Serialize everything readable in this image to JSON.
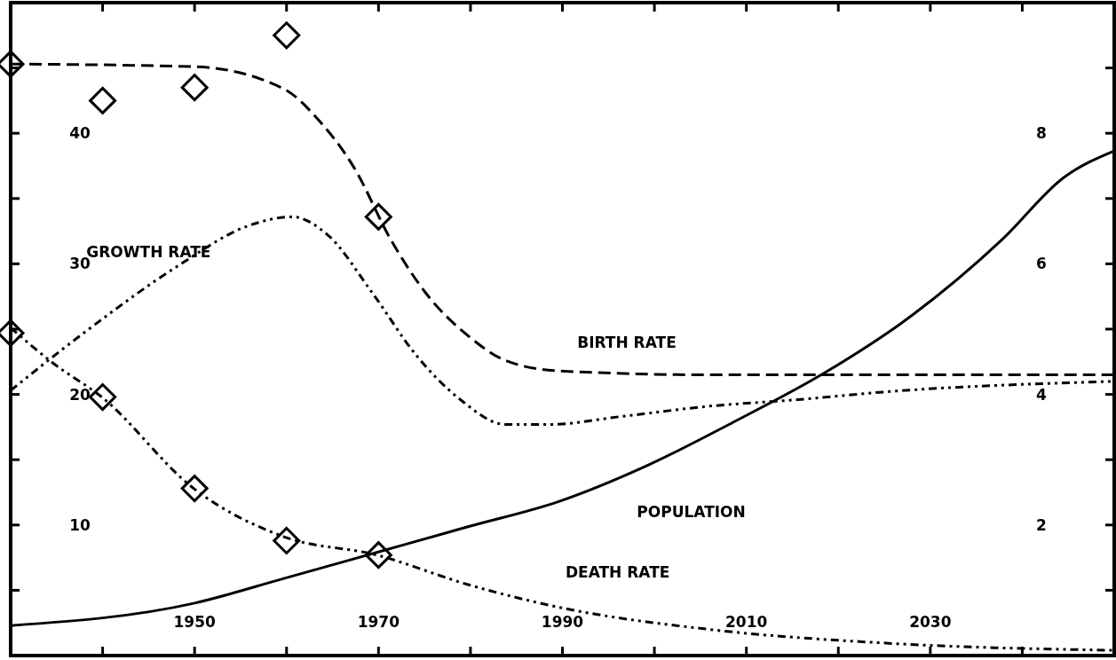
{
  "chart_data": {
    "type": "line",
    "xlim": [
      1930,
      2050
    ],
    "ylim": [
      0,
      50
    ],
    "y2lim": [
      0,
      10
    ],
    "xticks": [
      {
        "value": 1940,
        "label": null
      },
      1950,
      {
        "value": 1960,
        "label": null
      },
      1970,
      {
        "value": 1980,
        "label": null
      },
      1990,
      {
        "value": 2000,
        "label": null
      },
      2010,
      {
        "value": 2020,
        "label": null
      },
      2030,
      {
        "value": 2040,
        "label": null
      }
    ],
    "yticks": [
      {
        "value": 5,
        "label": null
      },
      10,
      {
        "value": 15,
        "label": null
      },
      20,
      {
        "value": 25,
        "label": null
      },
      30,
      {
        "value": 35,
        "label": null
      },
      40,
      {
        "value": 45,
        "label": null
      }
    ],
    "y2ticks": [
      {
        "value": 1,
        "label": null
      },
      2,
      {
        "value": 3,
        "label": null
      },
      4,
      {
        "value": 5,
        "label": null
      },
      6,
      {
        "value": 7,
        "label": null
      },
      8,
      {
        "value": 9,
        "label": null
      }
    ],
    "grid": false,
    "series": [
      {
        "name": "BIRTH RATE",
        "color": "#000000",
        "line_style": "dashed",
        "x": [
          1930,
          1950,
          1959.7,
          1963.5,
          1967.4,
          1971.3,
          1975.1,
          1979.9,
          1983.8,
          1989.6,
          2006,
          2025,
          2050
        ],
        "values": [
          45.3,
          45.1,
          43.4,
          41,
          37.3,
          31.9,
          27.8,
          24.4,
          22.6,
          21.8,
          21.5,
          21.5,
          21.5
        ]
      },
      {
        "name": "GROWTH RATE",
        "color": "#000000",
        "line_style": "dotted",
        "x": [
          1930,
          1938.5,
          1948.1,
          1955.8,
          1960.6,
          1964.5,
          1969.3,
          1974.1,
          1978.9,
          1983.8,
          1988.6,
          1996.3,
          2006,
          2015.6,
          2025.2,
          2050
        ],
        "values": [
          20.3,
          25,
          29.8,
          32.9,
          33.6,
          32.2,
          27.8,
          23,
          19.6,
          17.7,
          17.7,
          18.3,
          19.1,
          19.6,
          20.2,
          21
        ]
      },
      {
        "name": "DEATH RATE",
        "color": "#000000",
        "line_style": "dotted",
        "x": [
          1930,
          1934.6,
          1939.9,
          1949.9,
          1959.7,
          1969.8,
          1979.9,
          1989.6,
          2006,
          2025.2,
          2050
        ],
        "values": [
          25.1,
          22.4,
          19.8,
          12.8,
          9.1,
          7.7,
          5.4,
          3.7,
          2,
          0.95,
          0.4
        ]
      },
      {
        "name": "POPULATION",
        "color": "#000000",
        "line_style": "solid",
        "axis": "y2",
        "x": [
          1930,
          1949.9,
          1959.7,
          1969.8,
          1979.9,
          1989.6,
          1999.2,
          2008.8,
          2018.5,
          2028.1,
          2037.8,
          2044.5,
          2050
        ],
        "values": [
          0.46,
          0.8,
          1.18,
          1.58,
          1.98,
          2.36,
          2.91,
          3.59,
          4.33,
          5.22,
          6.37,
          7.32,
          7.73
        ]
      },
      {
        "type": "scatter",
        "marker": "diamond",
        "color": "#000000",
        "x": [
          1930,
          1940,
          1950,
          1960,
          1970
        ],
        "values": [
          45.3,
          42.5,
          43.5,
          47.5,
          33.6
        ]
      },
      {
        "type": "scatter",
        "marker": "diamond",
        "color": "#000000",
        "x": [
          1930,
          1940,
          1950,
          1960,
          1970
        ],
        "values": [
          24.7,
          19.8,
          12.8,
          8.8,
          7.7
        ]
      }
    ]
  }
}
